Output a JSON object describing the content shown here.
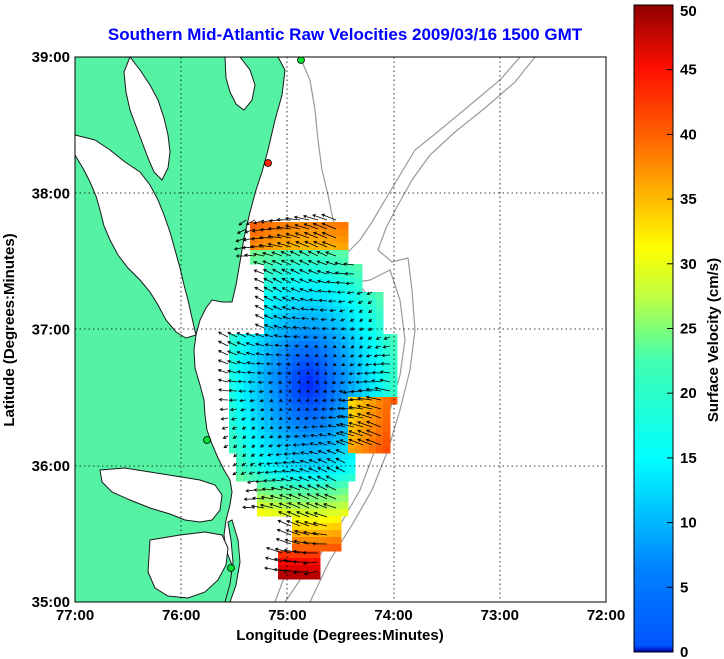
{
  "title": "Southern Mid-Atlantic Raw Velocities 2009/03/16 1500 GMT",
  "map": {
    "xlabel": "Longitude (Degrees:Minutes)",
    "ylabel": "Latitude (Degrees:Minutes)",
    "lon_range": [
      -77,
      -72
    ],
    "lat_range": [
      35,
      39
    ],
    "lon_ticks": [
      {
        "value": -77,
        "label": "77:00"
      },
      {
        "value": -76,
        "label": "76:00"
      },
      {
        "value": -75,
        "label": "75:00"
      },
      {
        "value": -74,
        "label": "74:00"
      },
      {
        "value": -73,
        "label": "73:00"
      },
      {
        "value": -72,
        "label": "72:00"
      }
    ],
    "lat_ticks": [
      {
        "value": 35,
        "label": "35:00"
      },
      {
        "value": 36,
        "label": "36:00"
      },
      {
        "value": 37,
        "label": "37:00"
      },
      {
        "value": 38,
        "label": "38:00"
      },
      {
        "value": 39,
        "label": "39:00"
      }
    ],
    "grid": "dotted",
    "colors": {
      "land": "#55f2a4",
      "water": "#ffffff",
      "coastline": "#1a1a1a",
      "isobath": "#9a9a9a",
      "site_green": "#00dd33",
      "site_red": "#ff2200"
    },
    "radar_sites": [
      {
        "lon": -75.1,
        "lat": 38.98,
        "status": "green"
      },
      {
        "lon": -75.08,
        "lat": 38.3,
        "status": "red"
      },
      {
        "lon": -75.7,
        "lat": 36.2,
        "status": "green"
      },
      {
        "lon": -75.5,
        "lat": 35.3,
        "status": "green"
      }
    ]
  },
  "colorbar": {
    "label": "Surface Velocity (cm/s)",
    "min": 0,
    "max": 50,
    "ticks": [
      {
        "value": 0,
        "label": "0"
      },
      {
        "value": 5,
        "label": "5"
      },
      {
        "value": 10,
        "label": "10"
      },
      {
        "value": 15,
        "label": "15"
      },
      {
        "value": 20,
        "label": "20"
      },
      {
        "value": 25,
        "label": "25"
      },
      {
        "value": 30,
        "label": "30"
      },
      {
        "value": 35,
        "label": "35"
      },
      {
        "value": 40,
        "label": "40"
      },
      {
        "value": 45,
        "label": "45"
      },
      {
        "value": 50,
        "label": "50"
      }
    ],
    "colormap": "jet"
  }
}
